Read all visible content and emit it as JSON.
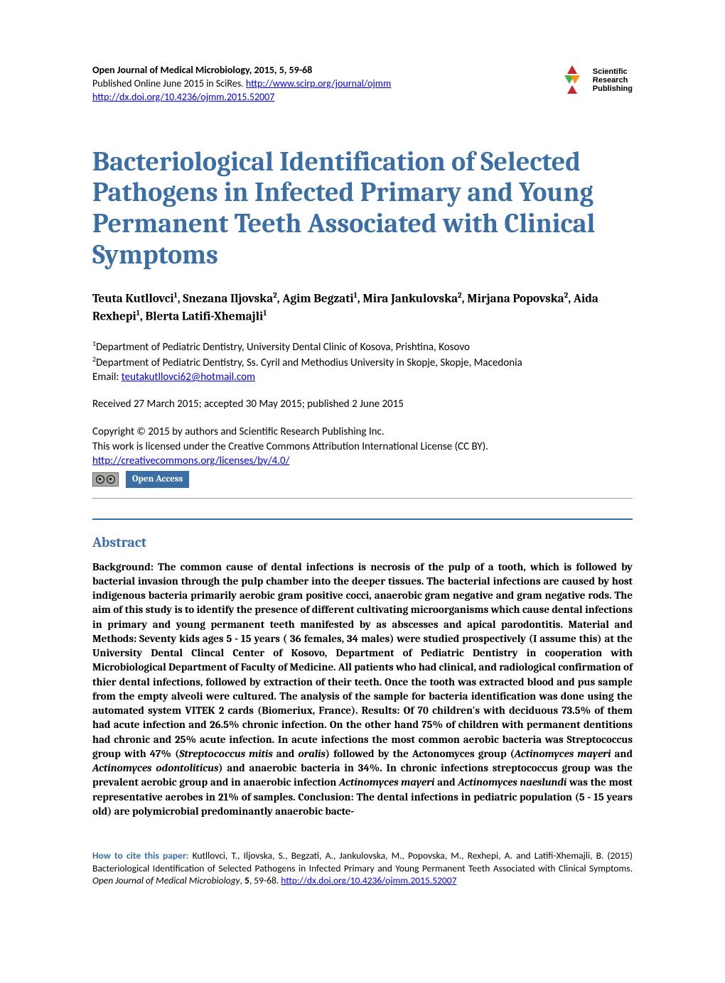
{
  "header": {
    "journal_line": "Open Journal of Medical Microbiology, 2015, 5, 59-68",
    "published_prefix": "Published Online June 2015 in SciRes. ",
    "journal_url": "http://www.scirp.org/journal/ojmm",
    "doi_url": "http://dx.doi.org/10.4236/ojmm.2015.52007"
  },
  "publisher_logo": {
    "line1": "Scientific",
    "line2": "Research",
    "line3": "Publishing",
    "color_red": "#c1272d",
    "color_green": "#39b54a",
    "color_yellow": "#f7931e"
  },
  "title": "Bacteriological Identification of Selected Pathogens in Infected Primary and Young Permanent Teeth Associated with Clinical Symptoms",
  "authors_html": "Teuta Kutllovci<sup>1</sup>, Snezana Iljovska<sup>2</sup>, Agim Begzati<sup>1</sup>, Mira Jankulovska<sup>2</sup>, Mirjana Popovska<sup>2</sup>, Aida Rexhepi<sup>1</sup>, Blerta Latifi-Xhemajli<sup>1</sup>",
  "affiliations": {
    "a1": "Department of Pediatric Dentistry, University Dental Clinic of Kosova, Prishtina, Kosovo",
    "a2": "Department of Pediatric Dentistry, Ss. Cyril and Methodius University in Skopje, Skopje, Macedonia",
    "email_label": "Email: ",
    "email": "teutakutllovci62@hotmail.com"
  },
  "dates": "Received 27 March 2015; accepted 30 May 2015; published 2 June 2015",
  "license": {
    "line1": "Copyright © 2015 by authors and Scientific Research Publishing Inc.",
    "line2": "This work is licensed under the Creative Commons Attribution International License (CC BY).",
    "url": "http://creativecommons.org/licenses/by/4.0/",
    "cc_label": "CC",
    "by_label": "BY",
    "open_access": "Open Access"
  },
  "abstract": {
    "heading": "Abstract",
    "body_html": "Background: The common cause of dental infections is necrosis of the pulp of a tooth, which is followed by bacterial invasion through the pulp chamber into the deeper tissues. The bacterial infections are caused by host indigenous bacteria primarily aerobic gram positive cocci, anaerobic gram negative and gram negative rods. The aim of this study is to identify the presence of different cultivating microorganisms which cause dental infections in primary and young permanent teeth manifested by as abscesses and apical parodontitis. Material and Methods: Seventy kids ages 5 - 15 years ( 36 females, 34 males) were studied prospectively (I assume this) at the University Dental Clincal Center of Kosovo, Department of Pediatric Dentistry in cooperation with Microbiological Department of Faculty of Medicine. All patients who had clinical, and radiological confirmation of thier dental infections, followed by extraction of their teeth. Once the tooth was extracted blood and pus sample from the empty alveoli were cultured. The analysis of the sample for bacteria identification was done using the automated system VITEK 2 cards (Biomeriux, France). Results: Of 70 children's with deciduous 73.5% of them had acute infection and 26.5% chronic infection. On the other hand 75% of children with permanent dentitions had chronic and 25% acute infection. In acute infections the most common aerobic bacteria was Streptococcus group with 47% (<em>Streptococcus mitis</em> and <em>oralis</em>) followed by the Actonomyces group (<em>Actinomyces mayeri</em> and <em>Actinomyces odontoliticus</em>) and anaerobic bacteria in 34%. In chronic infections streptococcus group was the prevalent aerobic group and in anaerobic infection <em>Actinomyces mayeri</em> and <em>Actinomyces naeslundi</em> was the most representative aerobes in 21% of samples. Conclusion: The dental infections in pediatric population (5 - 15 years old) are polymicrobial predominantly anaerobic bacte-"
  },
  "citation": {
    "lead": "How to cite this paper:",
    "text_html": " Kutllovci, T., Iljovska, S., Begzati, A., Jankulovska, M., Popovska, M., Rexhepi, A. and Latifi-Xhemajli, B. (2015) Bacteriological Identification of Selected Pathogens in Infected Primary and Young Permanent Teeth Associated with Clinical Symptoms. <em>Open Journal of Medical Microbiology</em>, <b>5</b>, 59-68. ",
    "url": "http://dx.doi.org/10.4236/ojmm.2015.52007"
  },
  "colors": {
    "accent": "#3a6ea5",
    "link": "#0000ee",
    "rule_gray": "#999999",
    "text": "#000000",
    "background": "#ffffff"
  }
}
